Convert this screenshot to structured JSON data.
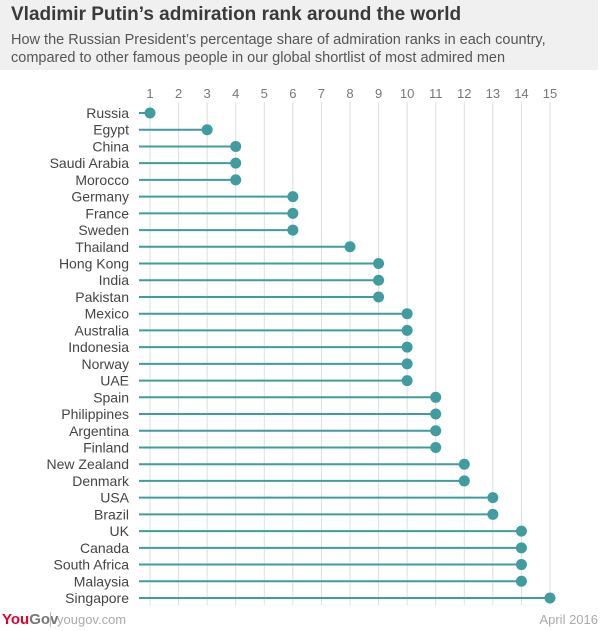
{
  "chart_data": {
    "type": "lollipop",
    "title": "Vladimir Putin’s admiration rank around the world",
    "subtitle": "How the Russian President’s percentage share of admiration ranks in each country, compared to other famous people in our global shortlist of most admired men",
    "xlim": [
      1,
      15
    ],
    "xticks": [
      "1",
      "2",
      "3",
      "4",
      "5",
      "6",
      "7",
      "8",
      "9",
      "10",
      "11",
      "12",
      "13",
      "14",
      "15"
    ],
    "grid": true,
    "color": "#3f9c9f",
    "categories": [
      "Russia",
      "Egypt",
      "China",
      "Saudi Arabia",
      "Morocco",
      "Germany",
      "France",
      "Sweden",
      "Thailand",
      "Hong Kong",
      "India",
      "Pakistan",
      "Mexico",
      "Australia",
      "Indonesia",
      "Norway",
      "UAE",
      "Spain",
      "Philippines",
      "Argentina",
      "Finland",
      "New Zealand",
      "Denmark",
      "USA",
      "Brazil",
      "UK",
      "Canada",
      "South Africa",
      "Malaysia",
      "Singapore"
    ],
    "values": [
      1,
      3,
      4,
      4,
      4,
      6,
      6,
      6,
      8,
      9,
      9,
      9,
      10,
      10,
      10,
      10,
      10,
      11,
      11,
      11,
      11,
      12,
      12,
      13,
      13,
      14,
      14,
      14,
      14,
      15
    ]
  },
  "footer": {
    "logo_you": "You",
    "logo_gov": "Gov",
    "url": "yougov.com",
    "date": "April 2016"
  }
}
